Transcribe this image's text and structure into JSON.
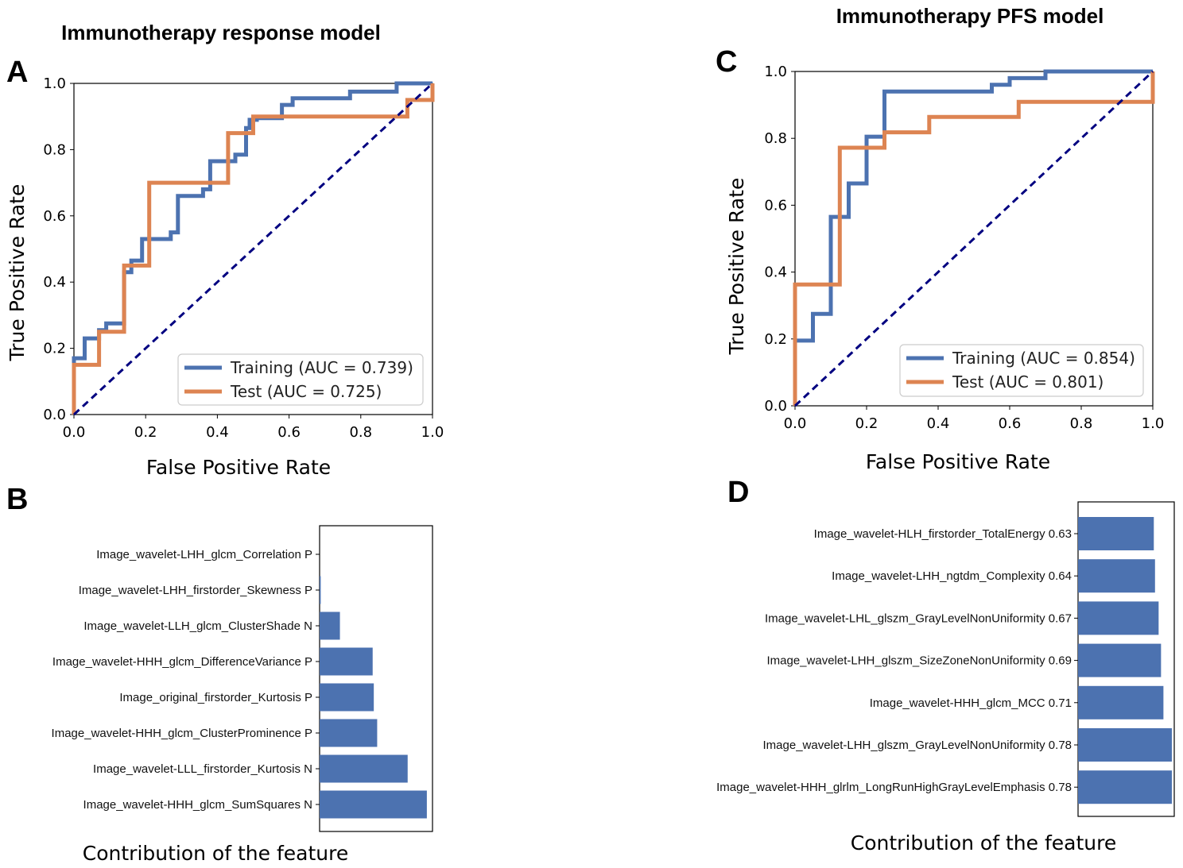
{
  "titles": {
    "left": "Immunotherapy response model",
    "right": "Immunotherapy PFS model"
  },
  "panels": {
    "a": "A",
    "b": "B",
    "c": "C",
    "d": "D"
  },
  "colors": {
    "training": "#4c72b0",
    "test": "#dd8452",
    "diagonal": "#000080",
    "bar": "#4c72b0"
  },
  "chart_data": [
    {
      "id": "A",
      "type": "line",
      "title": "Immunotherapy response model",
      "xlabel": "False Positive Rate",
      "ylabel": "True Positive Rate",
      "xlim": [
        0,
        1
      ],
      "ylim": [
        0,
        1
      ],
      "xticks": [
        "0.0",
        "0.2",
        "0.4",
        "0.6",
        "0.8",
        "1.0"
      ],
      "yticks": [
        "0.0",
        "0.2",
        "0.4",
        "0.6",
        "0.8",
        "1.0"
      ],
      "legend_position": "lower-right",
      "series": [
        {
          "name": "Training",
          "label": "Training (AUC = 0.739)",
          "points": [
            [
              0,
              0
            ],
            [
              0,
              0.17
            ],
            [
              0.03,
              0.17
            ],
            [
              0.03,
              0.23
            ],
            [
              0.07,
              0.23
            ],
            [
              0.07,
              0.255
            ],
            [
              0.09,
              0.255
            ],
            [
              0.09,
              0.275
            ],
            [
              0.14,
              0.275
            ],
            [
              0.14,
              0.43
            ],
            [
              0.16,
              0.43
            ],
            [
              0.16,
              0.465
            ],
            [
              0.19,
              0.465
            ],
            [
              0.19,
              0.53
            ],
            [
              0.27,
              0.53
            ],
            [
              0.27,
              0.55
            ],
            [
              0.29,
              0.55
            ],
            [
              0.29,
              0.66
            ],
            [
              0.36,
              0.66
            ],
            [
              0.36,
              0.68
            ],
            [
              0.38,
              0.68
            ],
            [
              0.38,
              0.765
            ],
            [
              0.45,
              0.765
            ],
            [
              0.45,
              0.785
            ],
            [
              0.48,
              0.785
            ],
            [
              0.48,
              0.865
            ],
            [
              0.49,
              0.865
            ],
            [
              0.49,
              0.89
            ],
            [
              0.51,
              0.89
            ],
            [
              0.51,
              0.895
            ],
            [
              0.58,
              0.895
            ],
            [
              0.58,
              0.935
            ],
            [
              0.61,
              0.935
            ],
            [
              0.61,
              0.955
            ],
            [
              0.77,
              0.955
            ],
            [
              0.77,
              0.975
            ],
            [
              0.9,
              0.975
            ],
            [
              0.9,
              1.0
            ],
            [
              1.0,
              1.0
            ]
          ]
        },
        {
          "name": "Test",
          "label": "Test (AUC = 0.725)",
          "points": [
            [
              0,
              0
            ],
            [
              0,
              0.15
            ],
            [
              0.07,
              0.15
            ],
            [
              0.07,
              0.25
            ],
            [
              0.14,
              0.25
            ],
            [
              0.14,
              0.45
            ],
            [
              0.21,
              0.45
            ],
            [
              0.21,
              0.7
            ],
            [
              0.43,
              0.7
            ],
            [
              0.43,
              0.85
            ],
            [
              0.5,
              0.85
            ],
            [
              0.5,
              0.9
            ],
            [
              0.93,
              0.9
            ],
            [
              0.93,
              0.95
            ],
            [
              1.0,
              0.95
            ],
            [
              1.0,
              1.0
            ]
          ]
        },
        {
          "name": "Chance",
          "points": [
            [
              0,
              0
            ],
            [
              1,
              1
            ]
          ]
        }
      ]
    },
    {
      "id": "C",
      "type": "line",
      "title": "Immunotherapy PFS model",
      "xlabel": "False Positive Rate",
      "ylabel": "True Positive Rate",
      "xlim": [
        0,
        1
      ],
      "ylim": [
        0,
        1
      ],
      "xticks": [
        "0.0",
        "0.2",
        "0.4",
        "0.6",
        "0.8",
        "1.0"
      ],
      "yticks": [
        "0.0",
        "0.2",
        "0.4",
        "0.6",
        "0.8",
        "1.0"
      ],
      "legend_position": "lower-right",
      "series": [
        {
          "name": "Training",
          "label": "Training (AUC = 0.854)",
          "points": [
            [
              0,
              0
            ],
            [
              0,
              0.195
            ],
            [
              0.05,
              0.195
            ],
            [
              0.05,
              0.275
            ],
            [
              0.1,
              0.275
            ],
            [
              0.1,
              0.565
            ],
            [
              0.15,
              0.565
            ],
            [
              0.15,
              0.665
            ],
            [
              0.2,
              0.665
            ],
            [
              0.2,
              0.805
            ],
            [
              0.25,
              0.805
            ],
            [
              0.25,
              0.94
            ],
            [
              0.55,
              0.94
            ],
            [
              0.55,
              0.96
            ],
            [
              0.6,
              0.96
            ],
            [
              0.6,
              0.98
            ],
            [
              0.7,
              0.98
            ],
            [
              0.7,
              1.0
            ],
            [
              1.0,
              1.0
            ]
          ]
        },
        {
          "name": "Test",
          "label": "Test (AUC = 0.801)",
          "points": [
            [
              0,
              0
            ],
            [
              0,
              0.363
            ],
            [
              0.125,
              0.363
            ],
            [
              0.125,
              0.772
            ],
            [
              0.25,
              0.772
            ],
            [
              0.25,
              0.818
            ],
            [
              0.375,
              0.818
            ],
            [
              0.375,
              0.864
            ],
            [
              0.625,
              0.864
            ],
            [
              0.625,
              0.909
            ],
            [
              1.0,
              0.909
            ],
            [
              1.0,
              1.0
            ]
          ]
        },
        {
          "name": "Chance",
          "points": [
            [
              0,
              0
            ],
            [
              1,
              1
            ]
          ]
        }
      ]
    },
    {
      "id": "B",
      "type": "bar",
      "orientation": "horizontal",
      "xlabel": "Contribution of the feature",
      "xlim": [
        0,
        1
      ],
      "categories": [
        "Image_wavelet-LHH_glcm_Correlation P",
        "Image_wavelet-LHH_firstorder_Skewness P",
        "Image_wavelet-LLH_glcm_ClusterShade N",
        "Image_wavelet-HHH_glcm_DifferenceVariance P",
        "Image_original_firstorder_Kurtosis P",
        "Image_wavelet-HHH_glcm_ClusterProminence P",
        "Image_wavelet-LLL_firstorder_Kurtosis N",
        "Image_wavelet-HHH_glcm_SumSquares N"
      ],
      "values": [
        0.0,
        0.01,
        0.18,
        0.47,
        0.48,
        0.51,
        0.78,
        0.95
      ]
    },
    {
      "id": "D",
      "type": "bar",
      "orientation": "horizontal",
      "xlabel": "Contribution of the feature",
      "xlim": [
        0,
        0.8
      ],
      "categories": [
        "Image_wavelet-HLH_firstorder_TotalEnergy 0.63",
        "Image_wavelet-LHH_ngtdm_Complexity 0.64",
        "Image_wavelet-LHL_glszm_GrayLevelNonUniformity 0.67",
        "Image_wavelet-LHH_glszm_SizeZoneNonUniformity 0.69",
        "Image_wavelet-HHH_glcm_MCC 0.71",
        "Image_wavelet-LHH_glszm_GrayLevelNonUniformity 0.78",
        "Image_wavelet-HHH_glrlm_LongRunHighGrayLevelEmphasis 0.78"
      ],
      "values": [
        0.63,
        0.64,
        0.67,
        0.69,
        0.71,
        0.78,
        0.78
      ]
    }
  ]
}
